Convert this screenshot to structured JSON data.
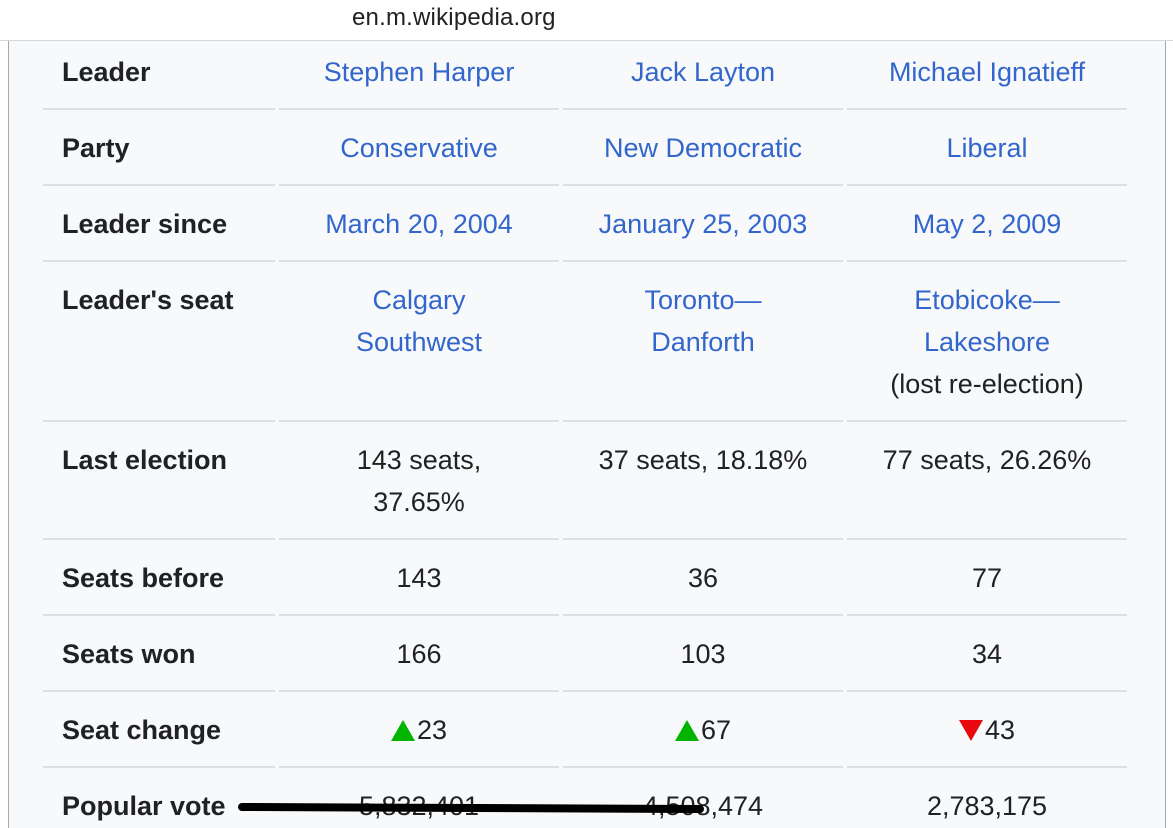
{
  "browser": {
    "url": "en.m.wikipedia.org"
  },
  "infobox": {
    "rows": [
      {
        "label": "Leader",
        "values": [
          "Stephen Harper",
          "Jack Layton",
          "Michael Ignatieff"
        ]
      },
      {
        "label": "Party",
        "values": [
          "Conservative",
          "New Democratic",
          "Liberal"
        ]
      },
      {
        "label": "Leader since",
        "values": [
          "March 20, 2004",
          "January 25, 2003",
          "May 2, 2009"
        ]
      },
      {
        "label": "Leader's seat",
        "values": [
          {
            "line1": "Calgary",
            "line2": "Southwest"
          },
          {
            "line1": "Toronto—",
            "line2": "Danforth"
          },
          {
            "line1": "Etobicoke—",
            "line2": "Lakeshore",
            "note": "(lost re-election)"
          }
        ]
      },
      {
        "label": "Last election",
        "values": [
          {
            "line1": "143 seats,",
            "line2": "37.65%"
          },
          {
            "line1": "37 seats, 18.18%"
          },
          {
            "line1": "77 seats, 26.26%"
          }
        ]
      },
      {
        "label": "Seats before",
        "values": [
          "143",
          "36",
          "77"
        ]
      },
      {
        "label": "Seats won",
        "values": [
          "166",
          "103",
          "34"
        ]
      },
      {
        "label": "Seat change",
        "values": [
          {
            "direction": "up",
            "amount": "23"
          },
          {
            "direction": "up",
            "amount": "67"
          },
          {
            "direction": "down",
            "amount": "43"
          }
        ]
      },
      {
        "label": "Popular vote",
        "values": [
          "5,832,401",
          "4,508,474",
          "2,783,175"
        ]
      }
    ]
  },
  "colors": {
    "link": "#3366cc",
    "text": "#202122",
    "increase": "#00b400",
    "decrease": "#e8090e"
  }
}
